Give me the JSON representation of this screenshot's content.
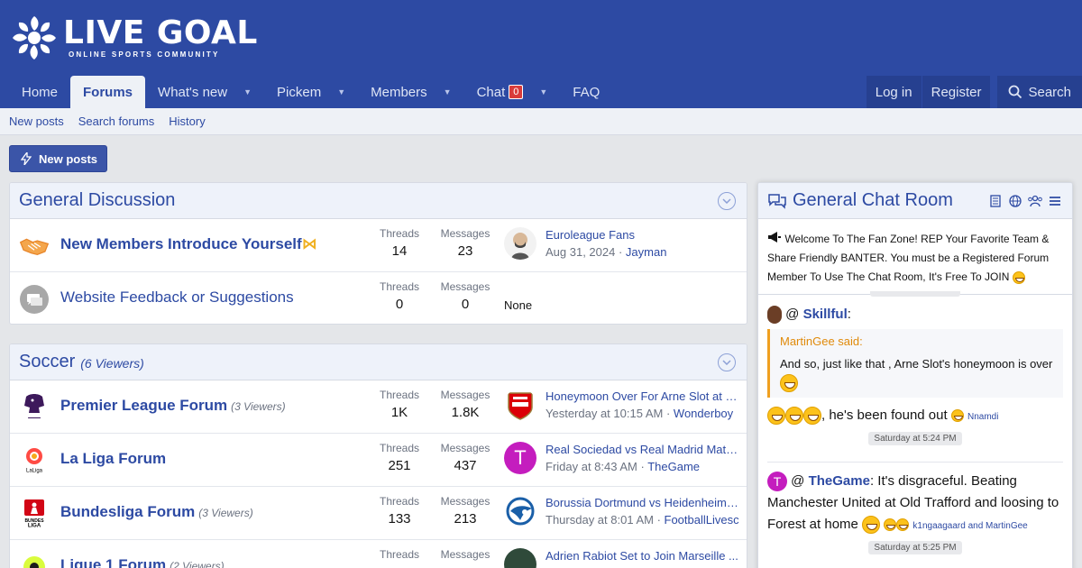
{
  "site": {
    "logo_title": "LIVE GOAL",
    "logo_subtitle": "ONLINE SPORTS COMMUNITY"
  },
  "nav": {
    "tabs": [
      {
        "label": "Home"
      },
      {
        "label": "Forums"
      },
      {
        "label": "What's new"
      },
      {
        "label": "Pickem"
      },
      {
        "label": "Members"
      },
      {
        "label": "Chat",
        "badge": "0"
      },
      {
        "label": "FAQ"
      }
    ],
    "login": "Log in",
    "register": "Register",
    "search": "Search"
  },
  "subnav": {
    "items": [
      "New posts",
      "Search forums",
      "History"
    ]
  },
  "new_posts_button": "New posts",
  "categories": [
    {
      "title": "General Discussion",
      "viewers": "",
      "nodes": [
        {
          "title": "New Members Introduce Yourself",
          "viewers": "",
          "threads_label": "Threads",
          "threads": "14",
          "messages_label": "Messages",
          "messages": "23",
          "last_title": "Euroleague Fans",
          "last_date": "Aug 31, 2024",
          "last_user": "Jayman"
        },
        {
          "title": "Website Feedback or Suggestions",
          "viewers": "",
          "threads_label": "Threads",
          "threads": "0",
          "messages_label": "Messages",
          "messages": "0",
          "last_none": "None"
        }
      ]
    },
    {
      "title": "Soccer",
      "viewers": "(6 Viewers)",
      "nodes": [
        {
          "title": "Premier League Forum",
          "viewers": "(3 Viewers)",
          "threads_label": "Threads",
          "threads": "1K",
          "messages_label": "Messages",
          "messages": "1.8K",
          "last_title": "Honeymoon Over For Arne Slot at Li...",
          "last_date": "Yesterday at 10:15 AM",
          "last_user": "Wonderboy"
        },
        {
          "title": "La Liga Forum",
          "viewers": "",
          "threads_label": "Threads",
          "threads": "251",
          "messages_label": "Messages",
          "messages": "437",
          "last_title": "Real Sociedad vs Real Madrid Matc...",
          "last_date": "Friday at 8:43 AM",
          "last_user": "TheGame",
          "last_avatar_letter": "T"
        },
        {
          "title": "Bundesliga Forum",
          "viewers": "(3 Viewers)",
          "threads_label": "Threads",
          "threads": "133",
          "messages_label": "Messages",
          "messages": "213",
          "last_title": "Borussia Dortmund vs Heidenheim ...",
          "last_date": "Thursday at 8:01 AM",
          "last_user": "FootballLivescore"
        },
        {
          "title": "Ligue 1 Forum",
          "viewers": "(2 Viewers)",
          "threads_label": "Threads",
          "messages_label": "Messages",
          "last_title": "Adrien Rabiot Set to Join Marseille ..."
        }
      ]
    }
  ],
  "chat": {
    "title": "General Chat Room",
    "notice": "Welcome To The Fan Zone! REP Your Favorite Team & Share Friendly BANTER. You must be a Registered Forum Member To Use The Chat Room, It's Free To JOIN",
    "messages": [
      {
        "at": "@",
        "author": "Skillful",
        "colon": ":",
        "quote_head": "MartinGee said:",
        "quote_body": "And so, just like that , Arne Slot's honeymoon is over",
        "reply": ", he's been found out",
        "reactors": "Nnamdi",
        "time": "Saturday at 5:24 PM"
      },
      {
        "at": "@",
        "author": "TheGame",
        "avatar_letter": "T",
        "colon": ":",
        "text": "It's disgraceful. Beating Manchester United at Old Trafford and loosing to Forest at home",
        "reactors": "k1ngaagaard and MartinGee",
        "time": "Saturday at 5:25 PM"
      }
    ]
  },
  "colors": {
    "brand": "#2d4aa3",
    "badge": "#d93b3b",
    "quote_accent": "#f0a020"
  }
}
